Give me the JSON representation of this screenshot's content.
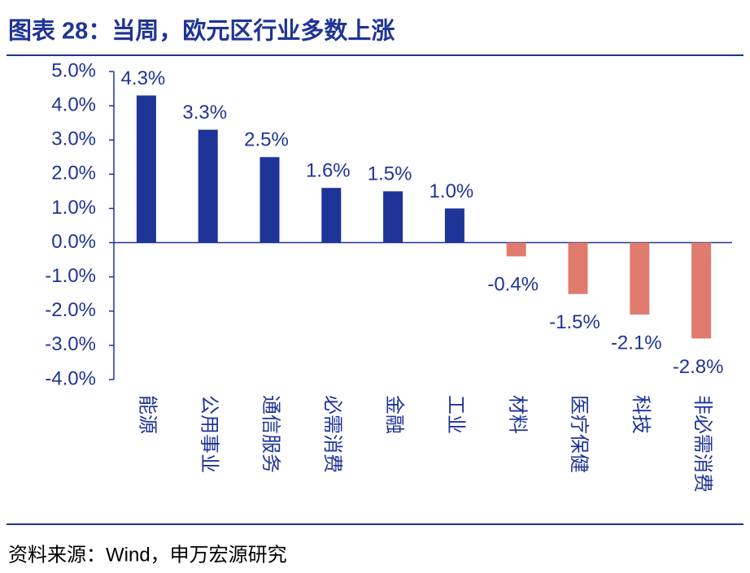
{
  "chart_data": {
    "type": "bar",
    "title": "图表 28：当周，欧元区行业多数上涨",
    "source": "资料来源：Wind，申万宏源研究",
    "categories": [
      "能源",
      "公用事业",
      "通信服务",
      "必需消费",
      "金融",
      "工业",
      "材料",
      "医疗保健",
      "科技",
      "非必需消费"
    ],
    "values": [
      4.3,
      3.3,
      2.5,
      1.6,
      1.5,
      1.0,
      -0.4,
      -1.5,
      -2.1,
      -2.8
    ],
    "value_labels": [
      "4.3%",
      "3.3%",
      "2.5%",
      "1.6%",
      "1.5%",
      "1.0%",
      "-0.4%",
      "-1.5%",
      "-2.1%",
      "-2.8%"
    ],
    "color": "#1f3497",
    "negative_color": "#e07b6e",
    "ylim": [
      -4,
      5
    ],
    "yticks": [
      {
        "value": 5,
        "label": "5.0%"
      },
      {
        "value": 4,
        "label": "4.0%"
      },
      {
        "value": 3,
        "label": "3.0%"
      },
      {
        "value": 2,
        "label": "2.0%"
      },
      {
        "value": 1,
        "label": "1.0%"
      },
      {
        "value": 0,
        "label": "0.0%"
      },
      {
        "value": -1,
        "label": "-1.0%"
      },
      {
        "value": -2,
        "label": "-2.0%"
      },
      {
        "value": -3,
        "label": "-3.0%"
      },
      {
        "value": -4,
        "label": "-4.0%"
      }
    ],
    "grid": false
  }
}
